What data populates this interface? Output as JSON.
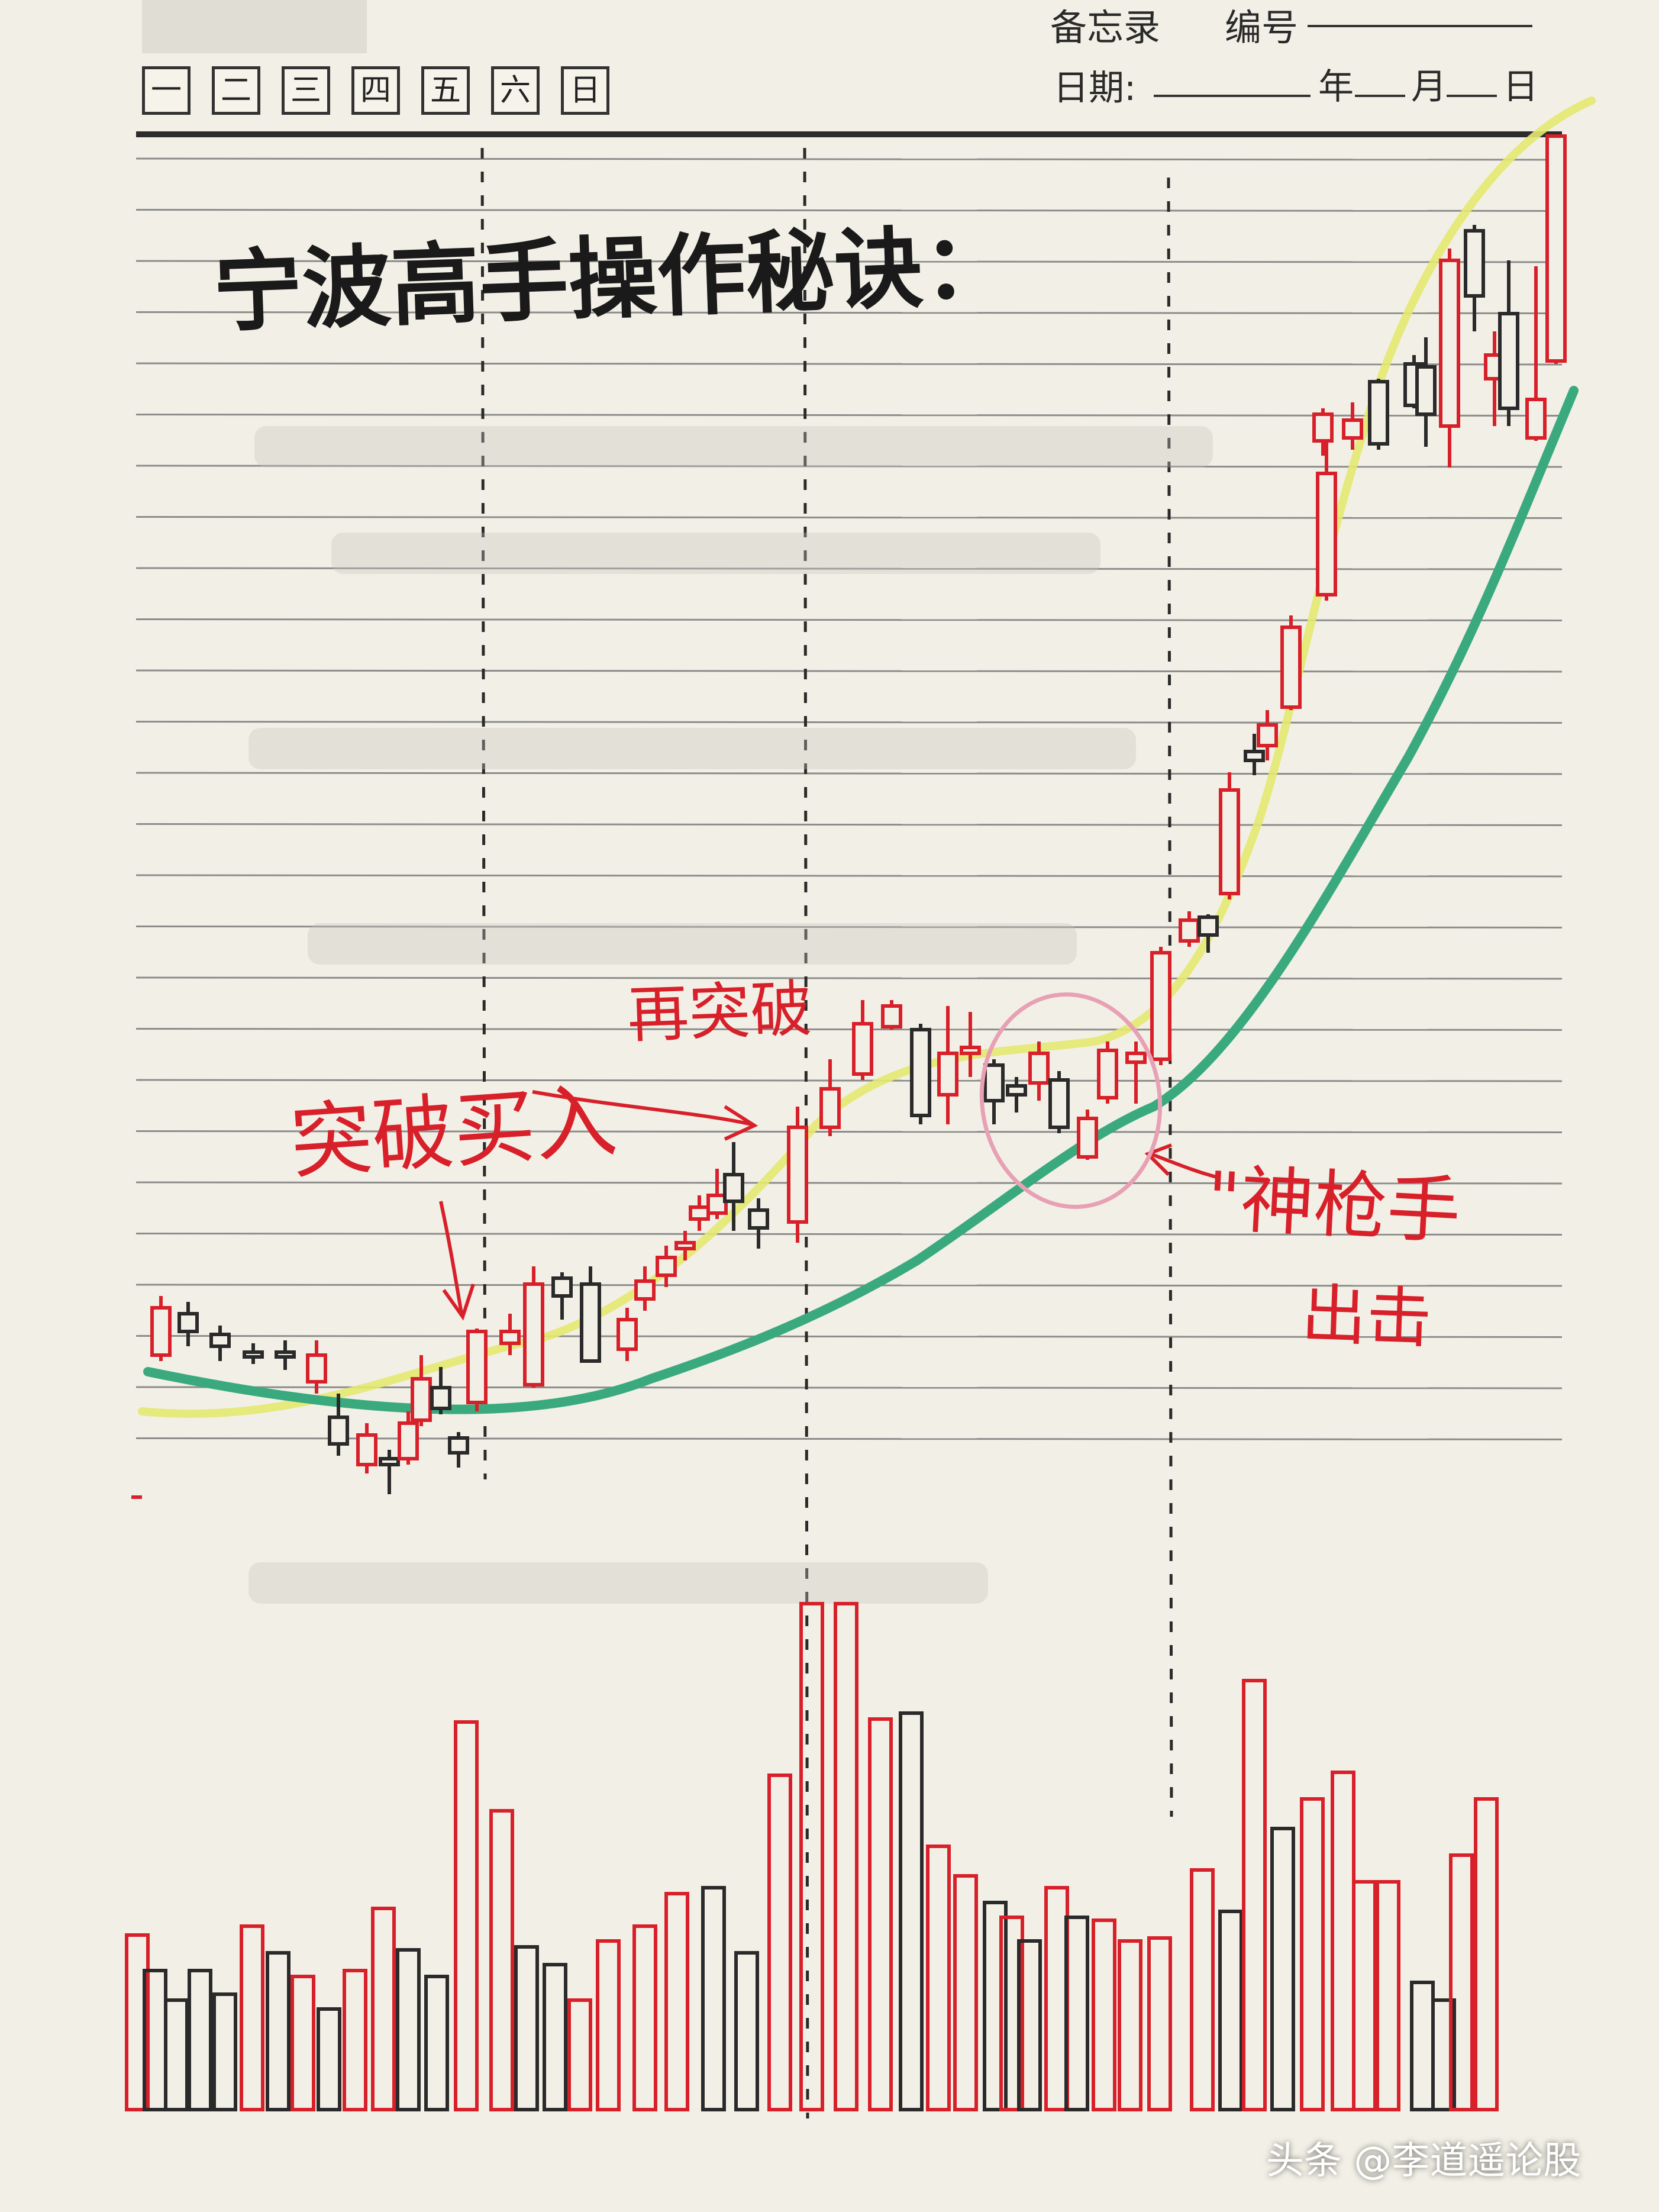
{
  "notebook": {
    "header_title": "备忘录",
    "number_label": "编号",
    "date_label": "日期:",
    "year": "年",
    "month": "月",
    "day": "日",
    "weekdays": [
      "一",
      "二",
      "三",
      "四",
      "五",
      "六",
      "日"
    ]
  },
  "handwriting": {
    "title": "宁波高手操作秘诀：",
    "breakout_entry": "突破买入",
    "rebreakout": "再突破",
    "god_hand_1": "\"神枪手",
    "god_hand_2": "出击"
  },
  "watermark": "头条 @李道遥论股",
  "colors": {
    "paper": "#f2f0e6",
    "ruled_line": "#8c8c8c",
    "red_ink": "#d8202a",
    "black_ink": "#2a2a2a",
    "green_ma": "#3aaa7e",
    "yellow_ma": "#e4e870",
    "pink_circle": "#e8a0b4"
  },
  "chart_data": {
    "type": "candlestick",
    "note_lines": "hand-drawn candlestick sketch with volume bars, no numeric axes printed",
    "candles_count": 47,
    "volume_bars_count": 52
  }
}
